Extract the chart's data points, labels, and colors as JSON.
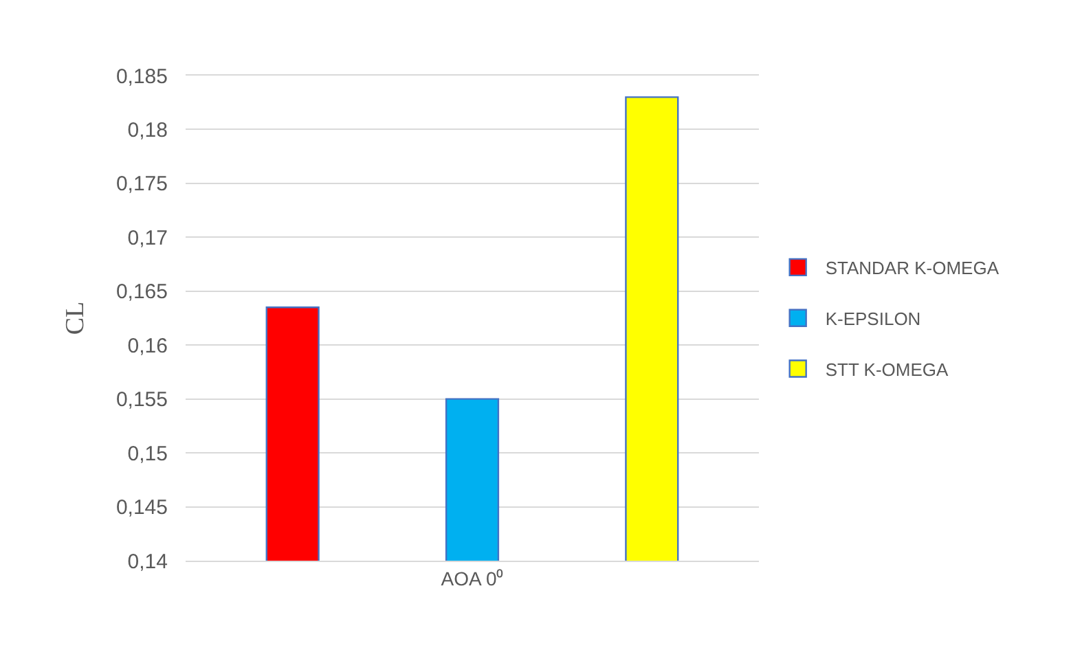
{
  "chart_data": {
    "type": "bar",
    "ylabel": "CL",
    "categories": [
      "AOA 0⁰"
    ],
    "series": [
      {
        "name": "STANDAR K-OMEGA",
        "color": "#ff0000",
        "values": [
          0.1635
        ]
      },
      {
        "name": "K-EPSILON",
        "color": "#00b0f0",
        "values": [
          0.155
        ]
      },
      {
        "name": "STT K-OMEGA",
        "color": "#ffff00",
        "values": [
          0.183
        ]
      }
    ],
    "ylim": [
      0.14,
      0.185
    ],
    "yticks": [
      {
        "value": 0.14,
        "label": "0,14"
      },
      {
        "value": 0.145,
        "label": "0,145"
      },
      {
        "value": 0.15,
        "label": "0,15"
      },
      {
        "value": 0.155,
        "label": "0,155"
      },
      {
        "value": 0.16,
        "label": "0,16"
      },
      {
        "value": 0.165,
        "label": "0,165"
      },
      {
        "value": 0.17,
        "label": "0,17"
      },
      {
        "value": 0.175,
        "label": "0,175"
      },
      {
        "value": 0.18,
        "label": "0,18"
      },
      {
        "value": 0.185,
        "label": "0,185"
      }
    ],
    "grid": "y",
    "legend": "right"
  }
}
